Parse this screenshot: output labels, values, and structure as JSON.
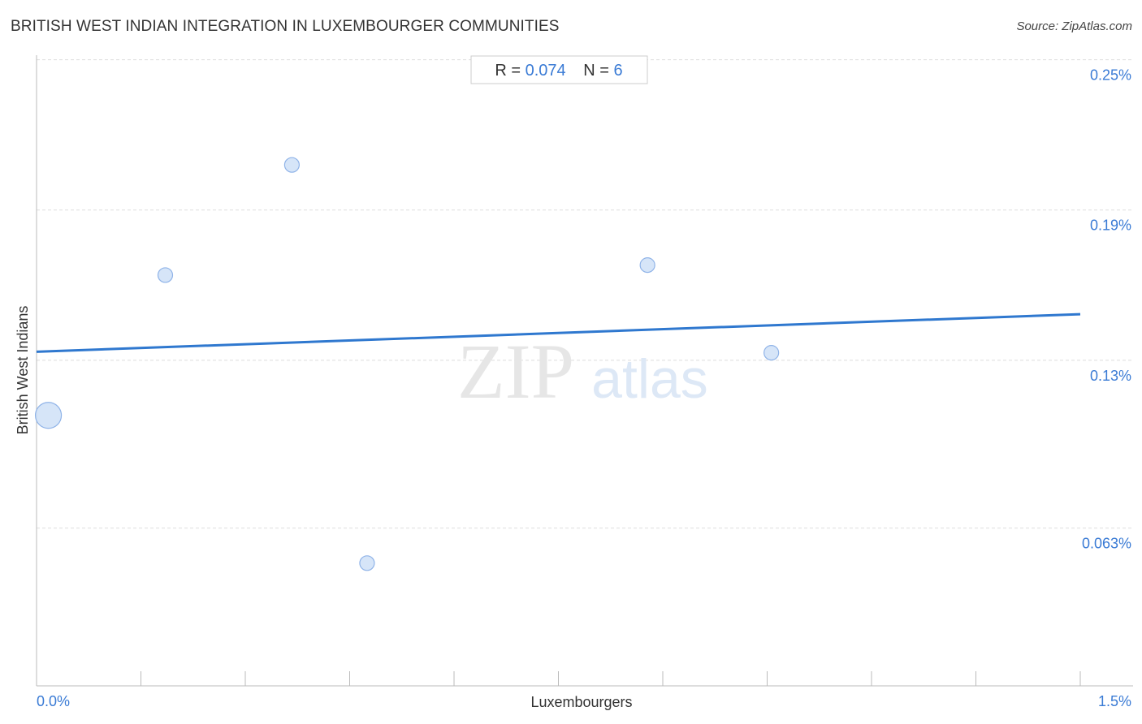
{
  "title": "BRITISH WEST INDIAN INTEGRATION IN LUXEMBOURGER COMMUNITIES",
  "source": "Source: ZipAtlas.com",
  "stats": {
    "r_label": "R =",
    "r_value": "0.074",
    "n_label": "N =",
    "n_value": "6"
  },
  "watermark": {
    "zip": "ZIP",
    "atlas": "atlas"
  },
  "colors": {
    "accent": "#3a7bd5",
    "trend_line": "#2f78cf",
    "point_fill": "#cfe0f7",
    "point_stroke": "#8fb3e8",
    "grid": "#dddddd",
    "axis": "#bbbbbb"
  },
  "chart_data": {
    "type": "scatter",
    "xlabel": "Luxembourgers",
    "ylabel": "British West Indians",
    "xlim": [
      0.0,
      1.5
    ],
    "ylim": [
      0.0,
      0.2544
    ],
    "x_tick_labels": [
      {
        "value": 0.0,
        "label": "0.0%"
      },
      {
        "value": 1.5,
        "label": "1.5%"
      }
    ],
    "y_tick_labels": [
      {
        "value": 0.25,
        "label": "0.25%"
      },
      {
        "value": 0.19,
        "label": "0.19%"
      },
      {
        "value": 0.13,
        "label": "0.13%"
      },
      {
        "value": 0.063,
        "label": "0.063%"
      }
    ],
    "grid": true,
    "points": [
      {
        "x": 0.017,
        "y": 0.108,
        "size": "large"
      },
      {
        "x": 0.185,
        "y": 0.164,
        "size": "small"
      },
      {
        "x": 0.367,
        "y": 0.208,
        "size": "small"
      },
      {
        "x": 0.475,
        "y": 0.049,
        "size": "small"
      },
      {
        "x": 0.878,
        "y": 0.168,
        "size": "small"
      },
      {
        "x": 1.056,
        "y": 0.133,
        "size": "small"
      }
    ],
    "trend_line": {
      "x": [
        0.0,
        1.5
      ],
      "y": [
        0.1334,
        0.1484
      ]
    }
  }
}
